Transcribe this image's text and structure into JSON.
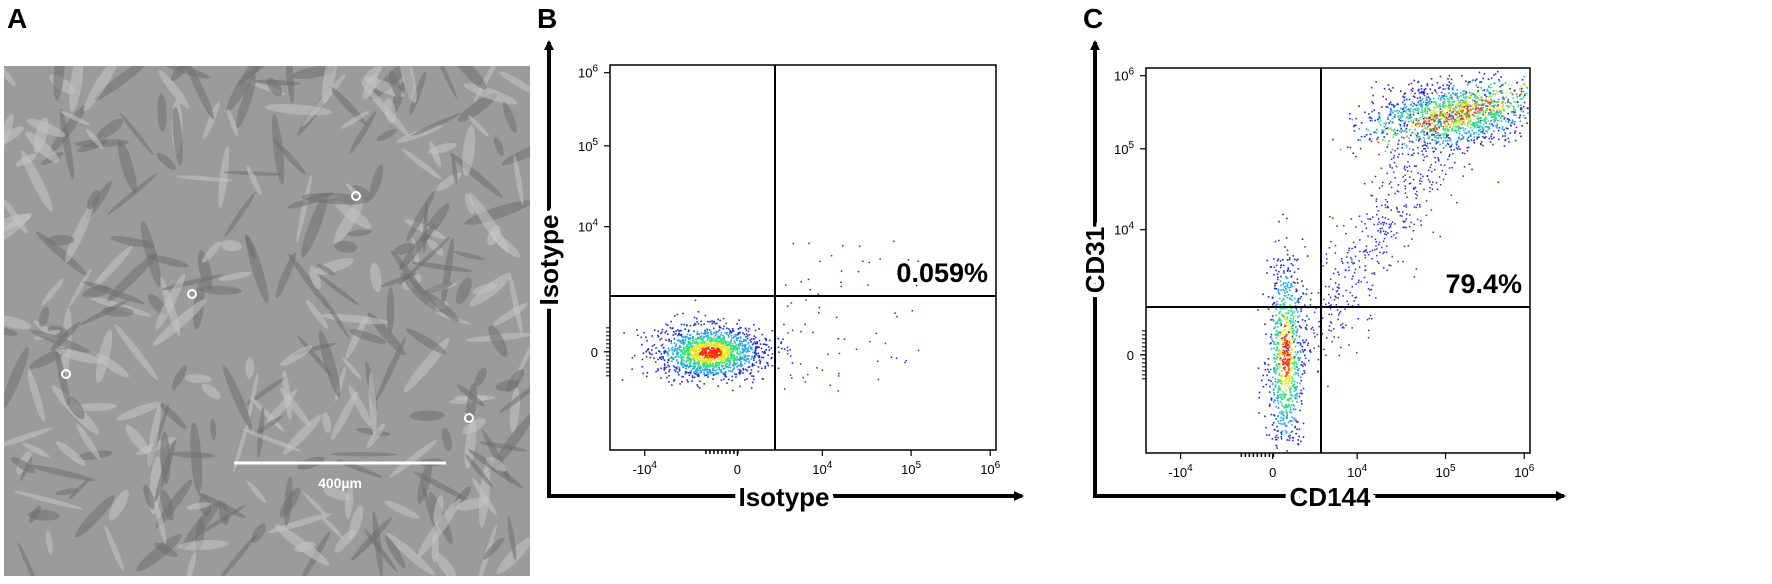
{
  "panels": {
    "a": {
      "letter": "A",
      "scale_bar_label": "400µm"
    },
    "b": {
      "letter": "B"
    },
    "c": {
      "letter": "C"
    }
  },
  "chart_data": [
    {
      "type": "scatter",
      "panel": "B",
      "xlabel": "Isotype",
      "ylabel": "Isotype",
      "x_scale": "biexponential",
      "y_scale": "biexponential",
      "x_ticks": [
        "-10^4",
        "0",
        "10^4",
        "10^5",
        "10^6"
      ],
      "y_ticks": [
        "0",
        "10^4",
        "10^5",
        "10^6"
      ],
      "quadrant_annotation": {
        "quadrant": "upper-right",
        "label": "0.059%"
      },
      "populations": [
        {
          "name": "",
          "center_x": -3000,
          "center_y": 0,
          "density": "high"
        }
      ]
    },
    {
      "type": "scatter",
      "panel": "C",
      "xlabel": "CD144",
      "ylabel": "CD31",
      "x_scale": "biexponential",
      "y_scale": "biexponential",
      "x_ticks": [
        "-10^4",
        "0",
        "10^4",
        "10^5",
        "10^6"
      ],
      "y_ticks": [
        "0",
        "10^4",
        "10^5",
        "10^6"
      ],
      "quadrant_annotation": {
        "quadrant": "upper-right",
        "label": "79.4%"
      },
      "populations": [
        {
          "name": "",
          "center_x": 150000,
          "center_y": 300000,
          "density": "high"
        },
        {
          "name": "",
          "center_x": 1500,
          "center_y": 0,
          "density": "medium"
        }
      ]
    }
  ],
  "colors": {
    "density": [
      "#1f2bd6",
      "#23a7e0",
      "#2fe07a",
      "#e6e620",
      "#ff2a00"
    ],
    "micro_bg": "#9b9b9b"
  }
}
